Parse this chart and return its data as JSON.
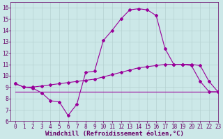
{
  "title": "",
  "xlabel": "Windchill (Refroidissement éolien,°C)",
  "ylabel": "",
  "xlim": [
    -0.5,
    23
  ],
  "ylim": [
    6,
    16.5
  ],
  "xticks": [
    0,
    1,
    2,
    3,
    4,
    5,
    6,
    7,
    8,
    9,
    10,
    11,
    12,
    13,
    14,
    15,
    16,
    17,
    18,
    19,
    20,
    21,
    22,
    23
  ],
  "yticks": [
    6,
    7,
    8,
    9,
    10,
    11,
    12,
    13,
    14,
    15,
    16
  ],
  "bg_color": "#cce8e8",
  "grid_color": "#b0cccc",
  "line_color": "#990099",
  "line1_x": [
    0,
    1,
    2,
    3,
    4,
    5,
    6,
    7,
    8,
    9,
    10,
    11,
    12,
    13,
    14,
    15,
    16,
    17,
    18,
    19,
    20,
    21,
    22,
    23
  ],
  "line1_y": [
    9.3,
    9.0,
    8.9,
    8.5,
    7.8,
    7.7,
    6.5,
    7.5,
    10.3,
    10.4,
    13.1,
    14.0,
    15.0,
    15.8,
    15.9,
    15.8,
    15.3,
    12.4,
    11.0,
    11.0,
    10.9,
    9.5,
    8.6,
    8.6
  ],
  "line2_x": [
    0,
    1,
    2,
    3,
    4,
    5,
    6,
    7,
    8,
    9,
    10,
    11,
    12,
    13,
    14,
    15,
    16,
    17,
    18,
    19,
    20,
    21,
    22,
    23
  ],
  "line2_y": [
    9.3,
    9.0,
    9.0,
    9.1,
    9.2,
    9.3,
    9.4,
    9.5,
    9.6,
    9.7,
    9.9,
    10.1,
    10.3,
    10.5,
    10.7,
    10.8,
    10.9,
    11.0,
    11.0,
    11.0,
    11.0,
    10.9,
    9.5,
    8.6
  ],
  "line3_x": [
    0,
    1,
    2,
    3,
    4,
    5,
    6,
    7,
    8,
    9,
    10,
    11,
    12,
    13,
    14,
    15,
    16,
    17,
    18,
    19,
    20,
    21,
    22,
    23
  ],
  "line3_y": [
    8.6,
    8.6,
    8.6,
    8.6,
    8.6,
    8.6,
    8.6,
    8.6,
    8.6,
    8.6,
    8.6,
    8.6,
    8.6,
    8.6,
    8.6,
    8.6,
    8.6,
    8.6,
    8.6,
    8.6,
    8.6,
    8.6,
    8.6,
    8.6
  ],
  "font_color": "#660066",
  "tick_fontsize": 5.5,
  "label_fontsize": 6.5,
  "marker_size": 2.0,
  "line_width": 0.8
}
